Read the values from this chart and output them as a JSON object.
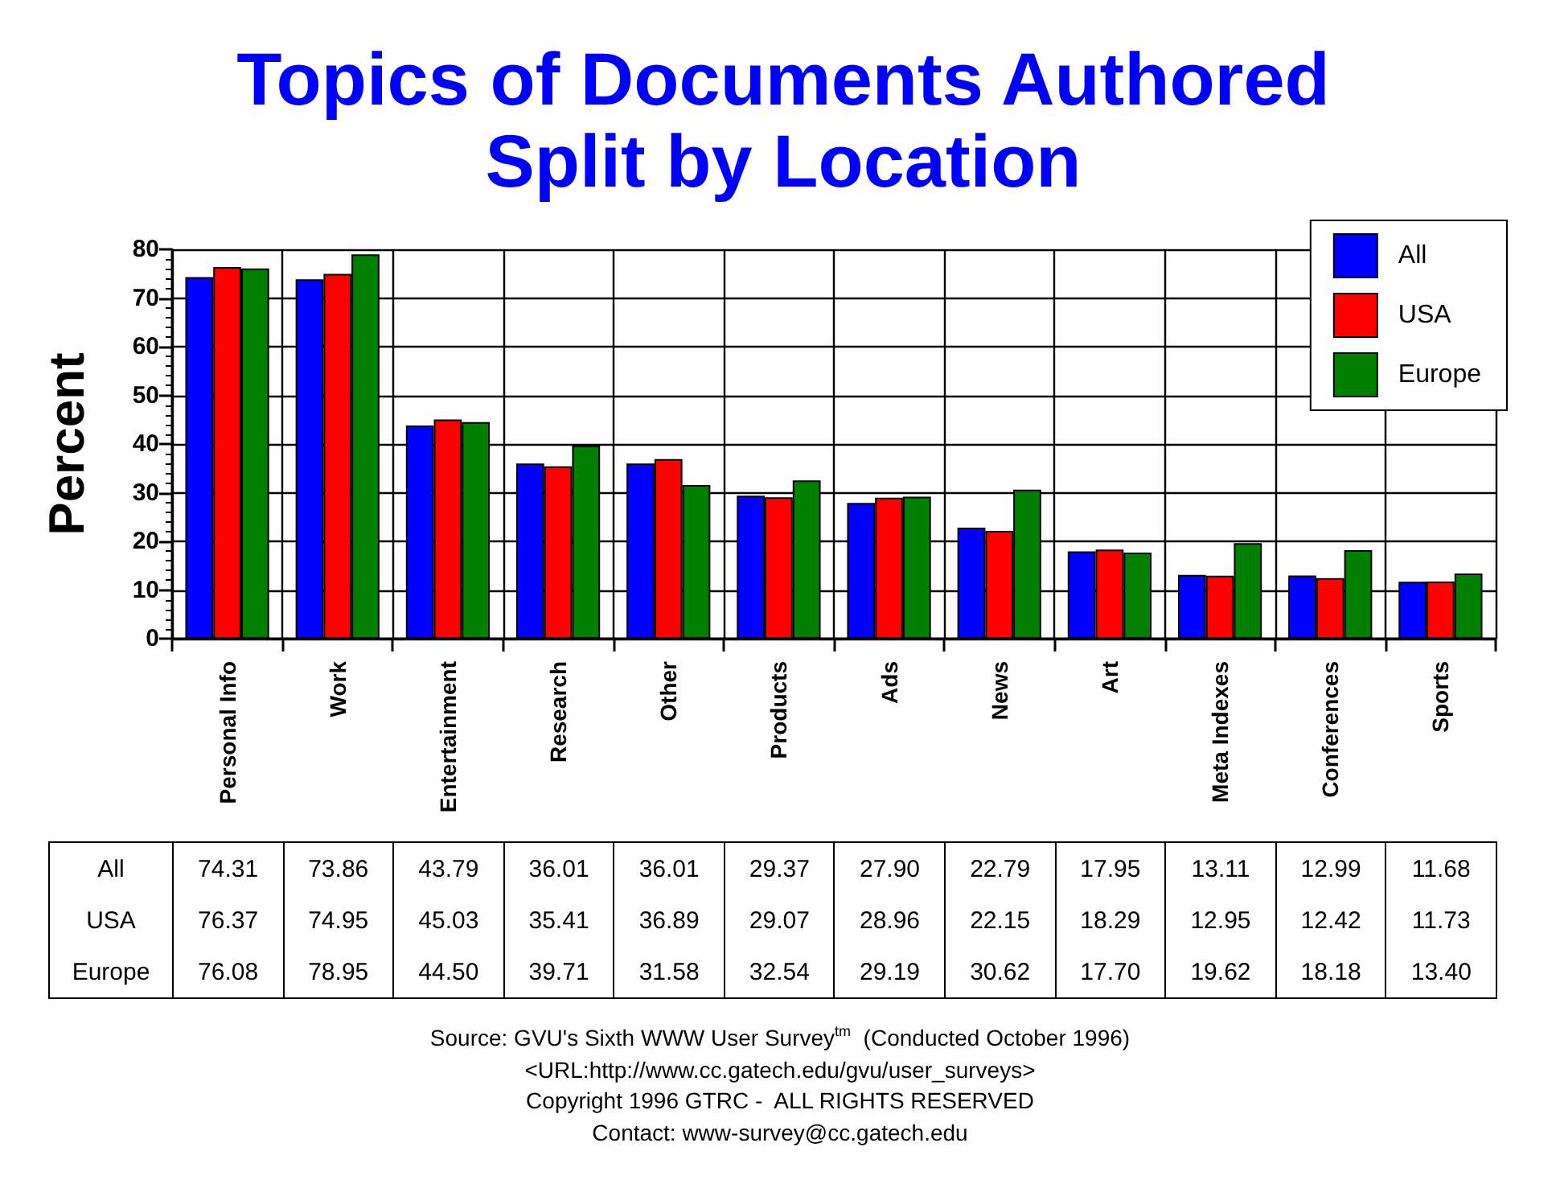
{
  "chart_data": {
    "type": "bar",
    "title": "Topics of Documents Authored Split by Location",
    "ylabel": "Percent",
    "categories": [
      "Personal Info",
      "Work",
      "Entertainment",
      "Research",
      "Other",
      "Products",
      "Ads",
      "News",
      "Art",
      "Meta Indexes",
      "Conferences",
      "Sports"
    ],
    "series": [
      {
        "name": "All",
        "color": "#0000ff",
        "values": [
          74.31,
          73.86,
          43.79,
          36.01,
          36.01,
          29.37,
          27.9,
          22.79,
          17.95,
          13.11,
          12.99,
          11.68
        ],
        "value_labels": [
          "74.31",
          "73.86",
          "43.79",
          "36.01",
          "36.01",
          "29.37",
          "27.90",
          "22.79",
          "17.95",
          "13.11",
          "12.99",
          "11.68"
        ]
      },
      {
        "name": "USA",
        "color": "#ff0000",
        "values": [
          76.37,
          74.95,
          45.03,
          35.41,
          36.89,
          29.07,
          28.96,
          22.15,
          18.29,
          12.95,
          12.42,
          11.73
        ],
        "value_labels": [
          "76.37",
          "74.95",
          "45.03",
          "35.41",
          "36.89",
          "29.07",
          "28.96",
          "22.15",
          "18.29",
          "12.95",
          "12.42",
          "11.73"
        ]
      },
      {
        "name": "Europe",
        "color": "#008000",
        "values": [
          76.08,
          78.95,
          44.5,
          39.71,
          31.58,
          32.54,
          29.19,
          30.62,
          17.7,
          19.62,
          18.18,
          13.4
        ],
        "value_labels": [
          "76.08",
          "78.95",
          "44.50",
          "39.71",
          "31.58",
          "32.54",
          "29.19",
          "30.62",
          "17.70",
          "19.62",
          "18.18",
          "13.40"
        ]
      }
    ],
    "ylim": [
      0,
      80
    ],
    "yticks": [
      0,
      10,
      20,
      30,
      40,
      50,
      60,
      70,
      80
    ],
    "grid": true,
    "legend": "top right",
    "annotations": [
      "Source: GVU's Sixth WWW User Survey$^{tm}$  (Conducted October 1996)",
      "<URL:http://www.cc.gatech.edu/gvu/user_surveys>",
      "Copyright 1996 GTRC -  ALL RIGHTS RESERVED",
      "Contact: www-survey@cc.gatech.edu"
    ]
  }
}
